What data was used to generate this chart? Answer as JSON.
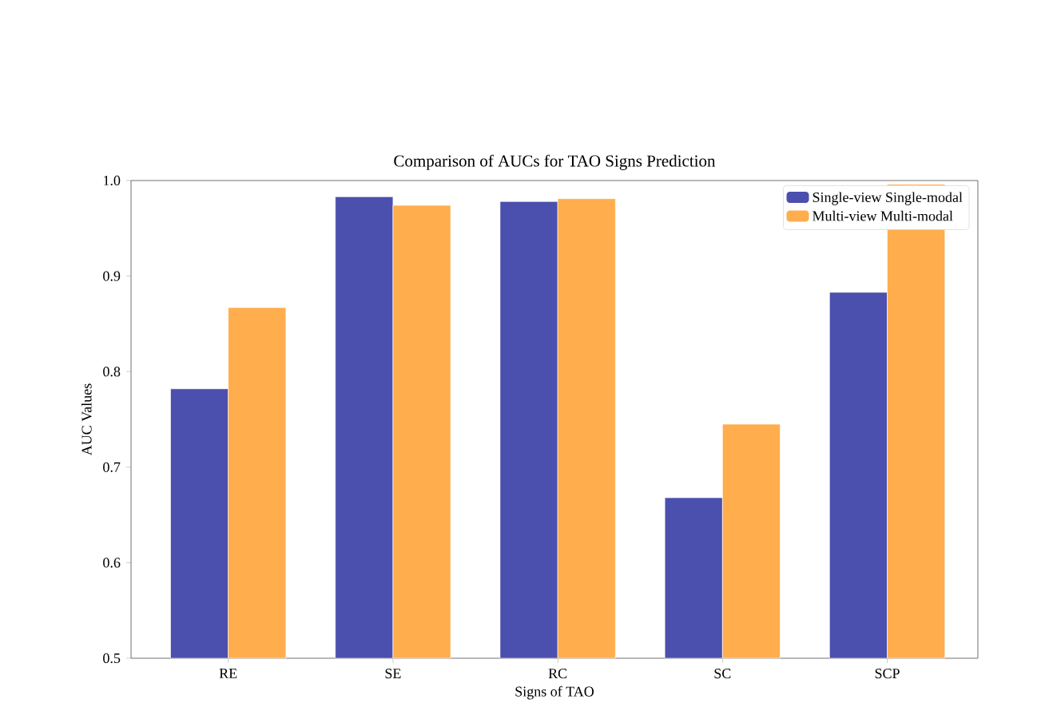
{
  "chart_data": {
    "type": "bar",
    "title": "Comparison of AUCs for TAO Signs Prediction",
    "xlabel": "Signs of TAO",
    "ylabel": "AUC Values",
    "categories": [
      "RE",
      "SE",
      "RC",
      "SC",
      "SCP"
    ],
    "series": [
      {
        "name": "Single-view Single-modal",
        "color": "#4b4fad",
        "values": [
          0.782,
          0.983,
          0.978,
          0.668,
          0.883
        ]
      },
      {
        "name": "Multi-view Multi-modal",
        "color": "#ffad4d",
        "values": [
          0.867,
          0.974,
          0.981,
          0.745,
          0.996
        ]
      }
    ],
    "ylim": [
      0.5,
      1.0
    ],
    "yticks": [
      0.5,
      0.6,
      0.7,
      0.8,
      0.9,
      {
        "value": 1.0,
        "label": "1.0"
      }
    ],
    "legend": "top right",
    "grid": false
  }
}
